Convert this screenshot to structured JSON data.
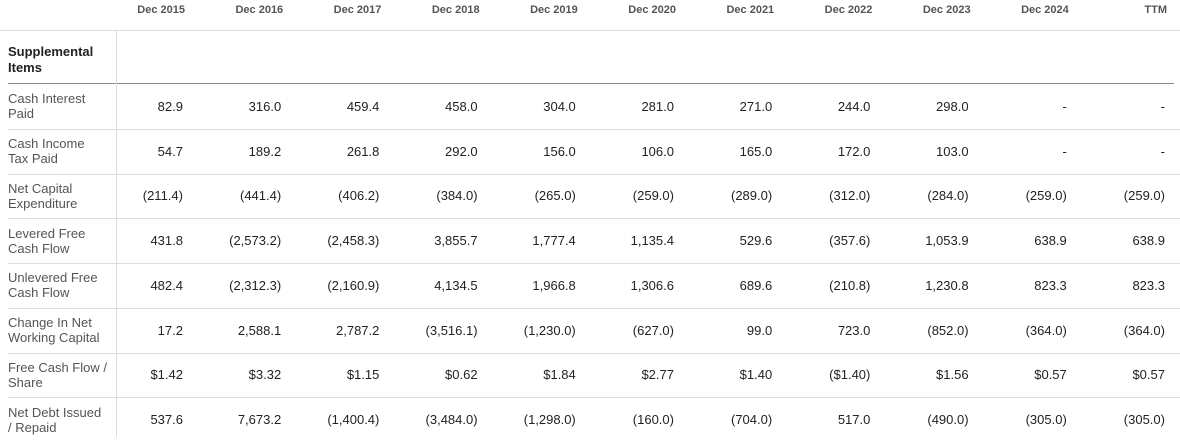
{
  "table": {
    "columns": [
      "Dec 2015",
      "Dec 2016",
      "Dec 2017",
      "Dec 2018",
      "Dec 2019",
      "Dec 2020",
      "Dec 2021",
      "Dec 2022",
      "Dec 2023",
      "Dec 2024",
      "TTM"
    ],
    "section": "Supplemental Items",
    "rows": [
      {
        "label": "Cash Interest Paid",
        "values": [
          "82.9",
          "316.0",
          "459.4",
          "458.0",
          "304.0",
          "281.0",
          "271.0",
          "244.0",
          "298.0",
          "-",
          "-"
        ]
      },
      {
        "label": "Cash Income Tax Paid",
        "values": [
          "54.7",
          "189.2",
          "261.8",
          "292.0",
          "156.0",
          "106.0",
          "165.0",
          "172.0",
          "103.0",
          "-",
          "-"
        ]
      },
      {
        "label": "Net Capital Expenditure",
        "values": [
          "(211.4)",
          "(441.4)",
          "(406.2)",
          "(384.0)",
          "(265.0)",
          "(259.0)",
          "(289.0)",
          "(312.0)",
          "(284.0)",
          "(259.0)",
          "(259.0)"
        ]
      },
      {
        "label": "Levered Free Cash Flow",
        "values": [
          "431.8",
          "(2,573.2)",
          "(2,458.3)",
          "3,855.7",
          "1,777.4",
          "1,135.4",
          "529.6",
          "(357.6)",
          "1,053.9",
          "638.9",
          "638.9"
        ]
      },
      {
        "label": "Unlevered Free Cash Flow",
        "values": [
          "482.4",
          "(2,312.3)",
          "(2,160.9)",
          "4,134.5",
          "1,966.8",
          "1,306.6",
          "689.6",
          "(210.8)",
          "1,230.8",
          "823.3",
          "823.3"
        ]
      },
      {
        "label": "Change In Net Working Capital",
        "values": [
          "17.2",
          "2,588.1",
          "2,787.2",
          "(3,516.1)",
          "(1,230.0)",
          "(627.0)",
          "99.0",
          "723.0",
          "(852.0)",
          "(364.0)",
          "(364.0)"
        ]
      },
      {
        "label": "Free Cash Flow / Share",
        "values": [
          "$1.42",
          "$3.32",
          "$1.15",
          "$0.62",
          "$1.84",
          "$2.77",
          "$1.40",
          "($1.40)",
          "$1.56",
          "$0.57",
          "$0.57"
        ]
      },
      {
        "label": "Net Debt Issued / Repaid",
        "values": [
          "537.6",
          "7,673.2",
          "(1,400.4)",
          "(3,484.0)",
          "(1,298.0)",
          "(160.0)",
          "(704.0)",
          "517.0",
          "(490.0)",
          "(305.0)",
          "(305.0)"
        ]
      }
    ]
  }
}
